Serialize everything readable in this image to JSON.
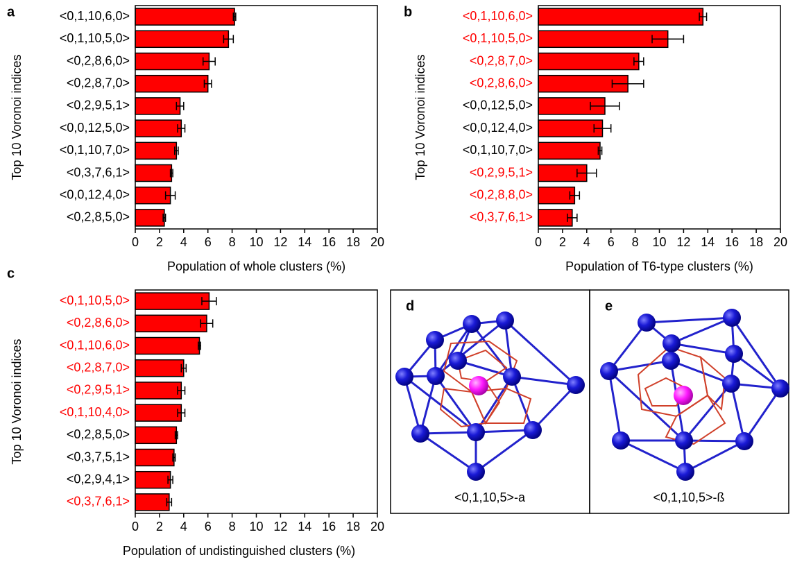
{
  "chart_data": [
    {
      "type": "bar",
      "orientation": "horizontal",
      "panel": "a",
      "ylabel": "Top 10 Voronoi indices",
      "xlabel": "Population of whole clusters (%)",
      "categories": [
        "<0,1,10,6,0>",
        "<0,1,10,5,0>",
        "<0,2,8,6,0>",
        "<0,2,8,7,0>",
        "<0,2,9,5,1>",
        "<0,0,12,5,0>",
        "<0,1,10,7,0>",
        "<0,3,7,6,1>",
        "<0,0,12,4,0>",
        "<0,2,8,5,0>"
      ],
      "category_colors": [
        "#000000",
        "#000000",
        "#000000",
        "#000000",
        "#000000",
        "#000000",
        "#000000",
        "#000000",
        "#000000",
        "#000000"
      ],
      "values": [
        8.2,
        7.7,
        6.1,
        6.0,
        3.7,
        3.8,
        3.4,
        3.0,
        2.9,
        2.4
      ],
      "errors": [
        0.1,
        0.4,
        0.5,
        0.3,
        0.3,
        0.3,
        0.15,
        0.1,
        0.4,
        0.1
      ],
      "color": "#ff0000",
      "xlim": [
        0,
        20
      ],
      "xticks": [
        0,
        2,
        4,
        6,
        8,
        10,
        12,
        14,
        16,
        18,
        20
      ]
    },
    {
      "type": "bar",
      "orientation": "horizontal",
      "panel": "b",
      "ylabel": "Top 10 Voronoi indices",
      "xlabel": "Population of T6-type clusters (%)",
      "categories": [
        "<0,1,10,6,0>",
        "<0,1,10,5,0>",
        "<0,2,8,7,0>",
        "<0,2,8,6,0>",
        "<0,0,12,5,0>",
        "<0,0,12,4,0>",
        "<0,1,10,7,0>",
        "<0,2,9,5,1>",
        "<0,2,8,8,0>",
        "<0,3,7,6,1>"
      ],
      "category_colors": [
        "#ff0000",
        "#ff0000",
        "#ff0000",
        "#ff0000",
        "#000000",
        "#000000",
        "#000000",
        "#ff0000",
        "#ff0000",
        "#ff0000"
      ],
      "values": [
        13.6,
        10.7,
        8.3,
        7.4,
        5.5,
        5.3,
        5.1,
        4.0,
        3.0,
        2.8
      ],
      "errors": [
        0.3,
        1.3,
        0.4,
        1.3,
        1.2,
        0.7,
        0.15,
        0.8,
        0.4,
        0.4
      ],
      "color": "#ff0000",
      "xlim": [
        0,
        20
      ],
      "xticks": [
        0,
        2,
        4,
        6,
        8,
        10,
        12,
        14,
        16,
        18,
        20
      ]
    },
    {
      "type": "bar",
      "orientation": "horizontal",
      "panel": "c",
      "ylabel": "Top 10 Voronoi indices",
      "xlabel": "Population of undistinguished clusters (%)",
      "categories": [
        "<0,1,10,5,0>",
        "<0,2,8,6,0>",
        "<0,1,10,6,0>",
        "<0,2,8,7,0>",
        "<0,2,9,5,1>",
        "<0,1,10,4,0>",
        "<0,2,8,5,0>",
        "<0,3,7,5,1>",
        "<0,2,9,4,1>",
        "<0,3,7,6,1>"
      ],
      "category_colors": [
        "#ff0000",
        "#ff0000",
        "#ff0000",
        "#ff0000",
        "#ff0000",
        "#ff0000",
        "#000000",
        "#000000",
        "#000000",
        "#ff0000"
      ],
      "values": [
        6.1,
        5.9,
        5.3,
        4.0,
        3.8,
        3.8,
        3.4,
        3.2,
        2.9,
        2.8
      ],
      "errors": [
        0.6,
        0.5,
        0.1,
        0.2,
        0.3,
        0.3,
        0.1,
        0.1,
        0.2,
        0.2
      ],
      "color": "#ff0000",
      "xlim": [
        0,
        20
      ],
      "xticks": [
        0,
        2,
        4,
        6,
        8,
        10,
        12,
        14,
        16,
        18,
        20
      ]
    }
  ],
  "diagrams": [
    {
      "label": "d",
      "caption": "<0,1,10,5>-a"
    },
    {
      "label": "e",
      "caption": "<0,1,10,5>-ß"
    }
  ]
}
